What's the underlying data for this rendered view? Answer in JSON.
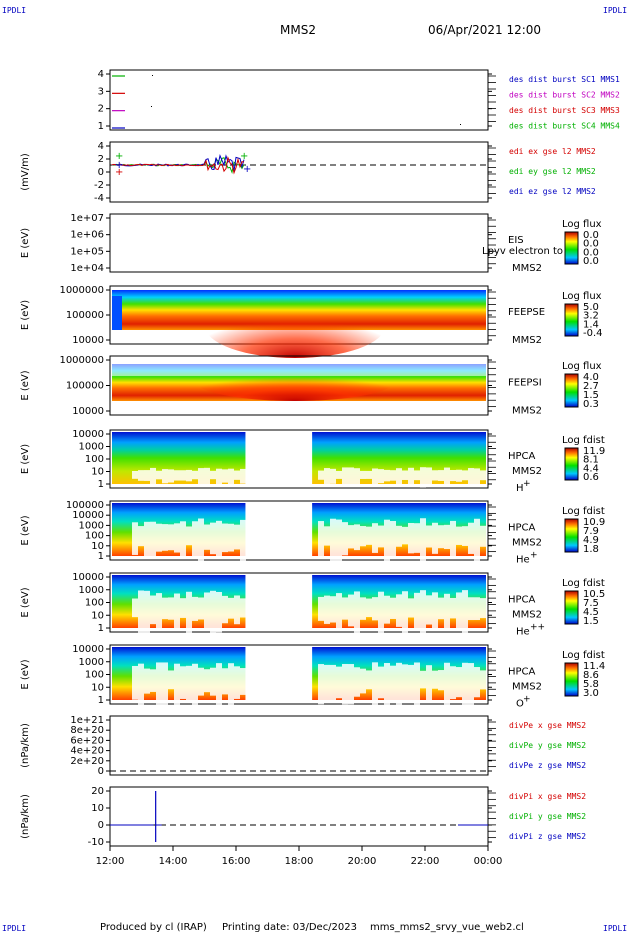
{
  "header": {
    "corner_left": "IPDLI",
    "corner_right": "IPDLI",
    "title": "MMS2",
    "datetime": "06/Apr/2021 12:00"
  },
  "footer": {
    "produced_by": "Produced by cl (IRAP)",
    "printing_date": "Printing date: 03/Dec/2023",
    "filename": "mms_mms2_srvy_vue_web2.cl",
    "corner_left": "IPDLI",
    "corner_right": "IPDLI"
  },
  "colors": {
    "red": "#d40000",
    "green": "#00b000",
    "blue": "#0000c0",
    "magenta": "#c000c0"
  },
  "chart_data": [
    {
      "id": "p1",
      "type": "line",
      "ylabel": "",
      "yticks": [
        "4",
        "3",
        "2",
        "1"
      ],
      "legend": [
        {
          "text": "des dist burst SC1 MMS1",
          "color": "#0000c0"
        },
        {
          "text": "des dist burst SC2 MMS2",
          "color": "#c000c0"
        },
        {
          "text": "des dist burst SC3 MMS3",
          "color": "#d40000"
        },
        {
          "text": "des dist burst SC4 MMS4",
          "color": "#00b000"
        }
      ]
    },
    {
      "id": "p2",
      "type": "line",
      "ylabel": "(mV/m)",
      "yticks": [
        "4",
        "2",
        "0",
        "-2",
        "-4"
      ],
      "legend": [
        {
          "text": "edi ex gse l2 MMS2",
          "color": "#d40000"
        },
        {
          "text": "edi ey gse l2 MMS2",
          "color": "#00b000"
        },
        {
          "text": "edi ez gse l2 MMS2",
          "color": "#0000c0"
        }
      ]
    },
    {
      "id": "p3",
      "type": "heatmap",
      "ylabel": "E (eV)",
      "yticks": [
        "1e+07",
        "1e+06",
        "1e+05",
        "1e+04"
      ],
      "labels": [
        "EIS",
        "MMS2"
      ],
      "overlay_text": "Lpyv electron to",
      "colorbar": {
        "title": "Log flux",
        "values": [
          "0.0",
          "0.0",
          "0.0",
          "0.0"
        ]
      }
    },
    {
      "id": "p4",
      "type": "heatmap",
      "ylabel": "E (eV)",
      "yticks": [
        "1000000",
        "100000",
        "10000"
      ],
      "labels": [
        "FEEPSE",
        "MMS2"
      ],
      "colorbar": {
        "title": "Log flux",
        "values": [
          "5.0",
          "3.2",
          "1.4",
          "-0.4"
        ]
      }
    },
    {
      "id": "p5",
      "type": "heatmap",
      "ylabel": "E (eV)",
      "yticks": [
        "1000000",
        "100000",
        "10000"
      ],
      "labels": [
        "FEEPSI",
        "MMS2"
      ],
      "colorbar": {
        "title": "Log flux",
        "values": [
          "4.0",
          "2.7",
          "1.5",
          "0.3"
        ]
      }
    },
    {
      "id": "p6",
      "type": "heatmap",
      "ylabel": "E (eV)",
      "yticks": [
        "10000",
        "1000",
        "100",
        "10",
        "1"
      ],
      "labels": [
        "HPCA",
        "MMS2"
      ],
      "species": "H",
      "species_sup": "+",
      "colorbar": {
        "title": "Log fdist",
        "values": [
          "11.9",
          "8.1",
          "4.4",
          "0.6"
        ]
      }
    },
    {
      "id": "p7",
      "type": "heatmap",
      "ylabel": "E (eV)",
      "yticks": [
        "100000",
        "10000",
        "1000",
        "100",
        "10",
        "1"
      ],
      "labels": [
        "HPCA",
        "MMS2"
      ],
      "species": "He",
      "species_sup": "+",
      "colorbar": {
        "title": "Log fdist",
        "values": [
          "10.9",
          "7.9",
          "4.9",
          "1.8"
        ]
      }
    },
    {
      "id": "p8",
      "type": "heatmap",
      "ylabel": "E (eV)",
      "yticks": [
        "10000",
        "1000",
        "100",
        "10",
        "1"
      ],
      "labels": [
        "HPCA",
        "MMS2"
      ],
      "species": "He",
      "species_sup": "++",
      "colorbar": {
        "title": "Log fdist",
        "values": [
          "10.5",
          "7.5",
          "4.5",
          "1.5"
        ]
      }
    },
    {
      "id": "p9",
      "type": "heatmap",
      "ylabel": "E (eV)",
      "yticks": [
        "10000",
        "1000",
        "100",
        "10",
        "1"
      ],
      "labels": [
        "HPCA",
        "MMS2"
      ],
      "species": "O",
      "species_sup": "+",
      "colorbar": {
        "title": "Log fdist",
        "values": [
          "11.4",
          "8.6",
          "5.8",
          "3.0"
        ]
      }
    },
    {
      "id": "p10",
      "type": "line",
      "ylabel": "(nPa/km)",
      "yticks": [
        "1e+21",
        "8e+20",
        "6e+20",
        "4e+20",
        "2e+20",
        "0"
      ],
      "legend": [
        {
          "text": "divPe x gse MMS2",
          "color": "#d40000"
        },
        {
          "text": "divPe y gse MMS2",
          "color": "#00b000"
        },
        {
          "text": "divPe z gse MMS2",
          "color": "#0000c0"
        }
      ]
    },
    {
      "id": "p11",
      "type": "line",
      "ylabel": "(nPa/km)",
      "yticks": [
        "20",
        "10",
        "0",
        "-10"
      ],
      "legend": [
        {
          "text": "divPi x gse MMS2",
          "color": "#d40000"
        },
        {
          "text": "divPi y gse MMS2",
          "color": "#00b000"
        },
        {
          "text": "divPi z gse MMS2",
          "color": "#0000c0"
        }
      ],
      "spike": {
        "time": "13:27",
        "min": -10,
        "max": 20
      }
    }
  ],
  "x_axis": {
    "ticks": [
      "12:00",
      "14:00",
      "16:00",
      "18:00",
      "20:00",
      "22:00",
      "00:00"
    ]
  }
}
